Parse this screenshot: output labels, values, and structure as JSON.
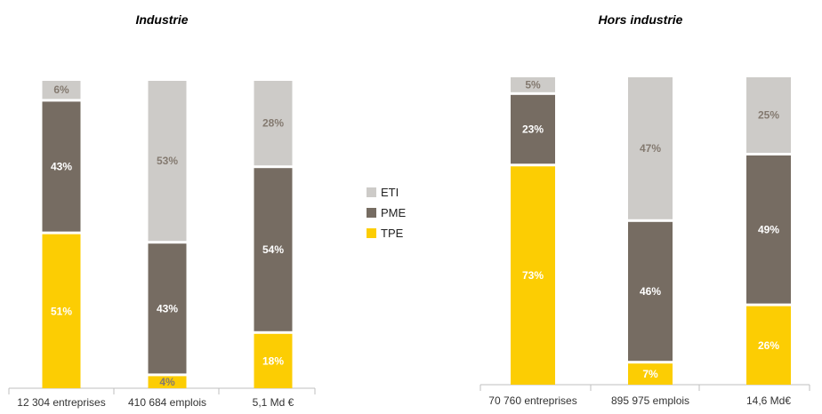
{
  "colors": {
    "ETI": "#cdcbc8",
    "PME": "#766c62",
    "TPE": "#fccd03",
    "label_dark": "#ffffff",
    "label_light": "#847a70",
    "label_yellow": "#ffffff"
  },
  "legend": {
    "items": [
      {
        "key": "ETI",
        "label": "ETI"
      },
      {
        "key": "PME",
        "label": "PME"
      },
      {
        "key": "TPE",
        "label": "TPE"
      }
    ]
  },
  "chart_data": [
    {
      "type": "bar",
      "stacked": true,
      "title": "Industrie",
      "categories": [
        "12 304 entreprises",
        "410 684 emplois",
        "5,1 Md €"
      ],
      "series": [
        {
          "name": "TPE",
          "values": [
            51,
            4,
            18
          ]
        },
        {
          "name": "PME",
          "values": [
            43,
            43,
            54
          ]
        },
        {
          "name": "ETI",
          "values": [
            6,
            53,
            28
          ]
        }
      ],
      "ylim": [
        0,
        100
      ]
    },
    {
      "type": "bar",
      "stacked": true,
      "title": "Hors industrie",
      "categories": [
        "70 760 entreprises",
        "895 975 emplois",
        "14,6 Md€"
      ],
      "series": [
        {
          "name": "TPE",
          "values": [
            73,
            7,
            26
          ]
        },
        {
          "name": "PME",
          "values": [
            23,
            46,
            49
          ]
        },
        {
          "name": "ETI",
          "values": [
            5,
            47,
            25
          ]
        }
      ],
      "ylim": [
        0,
        100
      ]
    }
  ]
}
